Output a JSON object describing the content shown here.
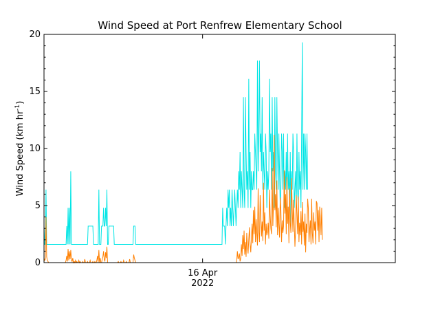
{
  "chart_data": {
    "type": "line",
    "title": "Wind Speed at Port Renfrew Elementary School",
    "ylabel_prefix": "Wind Speed (km hr",
    "ylabel_superscript": "-1",
    "ylabel_suffix": ")",
    "xlabel": "",
    "xlim": [
      "2022-04-14T08:30",
      "2022-04-18T00:00"
    ],
    "ylim": [
      0,
      20
    ],
    "grid": false,
    "legend": "none",
    "x_ticks": [
      {
        "x": "2022-04-16T00:00",
        "line1": "16 Apr",
        "line2": "2022"
      }
    ],
    "y_ticks": [
      {
        "value": 0,
        "label": "0"
      },
      {
        "value": 5,
        "label": "5"
      },
      {
        "value": 10,
        "label": "10"
      },
      {
        "value": 15,
        "label": "15"
      },
      {
        "value": 20,
        "label": "20"
      }
    ],
    "series": [
      {
        "name": "",
        "color": "#00e5e5",
        "step_minutes": 10,
        "x_start": "2022-04-14T08:30",
        "values": [
          3.2,
          1.6,
          1.6,
          6.4,
          1.6,
          1.6,
          1.6,
          1.6,
          1.6,
          1.6,
          1.6,
          1.6,
          1.6,
          1.6,
          1.6,
          1.6,
          1.6,
          1.6,
          1.6,
          1.6,
          1.6,
          1.6,
          1.6,
          1.6,
          1.6,
          1.6,
          1.6,
          1.6,
          1.6,
          1.6,
          1.6,
          1.6,
          1.6,
          1.6,
          3.2,
          1.6,
          4.8,
          1.6,
          4.8,
          1.6,
          8.0,
          1.6,
          1.6,
          1.6,
          1.6,
          1.6,
          1.6,
          1.6,
          1.6,
          1.6,
          1.6,
          1.6,
          1.6,
          1.6,
          1.6,
          1.6,
          1.6,
          1.6,
          1.6,
          1.6,
          1.6,
          1.6,
          1.6,
          1.6,
          1.6,
          1.6,
          3.2,
          3.2,
          3.2,
          3.2,
          3.2,
          3.2,
          3.2,
          3.2,
          1.6,
          1.6,
          1.6,
          1.6,
          1.6,
          1.6,
          1.6,
          1.6,
          6.4,
          1.6,
          1.6,
          1.6,
          3.2,
          3.2,
          3.2,
          4.8,
          3.2,
          3.2,
          4.8,
          3.2,
          6.4,
          1.6,
          1.6,
          3.2,
          3.2,
          3.2,
          3.2,
          3.2,
          3.2,
          3.2,
          3.2,
          1.6,
          1.6,
          1.6,
          1.6,
          1.6,
          1.6,
          1.6,
          1.6,
          1.6,
          1.6,
          1.6,
          1.6,
          1.6,
          1.6,
          1.6,
          1.6,
          1.6,
          1.6,
          1.6,
          1.6,
          1.6,
          1.6,
          1.6,
          1.6,
          1.6,
          1.6,
          1.6,
          1.6,
          1.6,
          3.2,
          3.2,
          3.2,
          1.6,
          1.6,
          1.6,
          1.6,
          1.6,
          1.6,
          1.6,
          1.6,
          1.6,
          1.6,
          1.6,
          1.6,
          1.6,
          1.6,
          1.6,
          1.6,
          1.6,
          1.6,
          1.6,
          1.6,
          1.6,
          1.6,
          1.6,
          1.6,
          1.6,
          1.6,
          1.6,
          1.6,
          1.6,
          1.6,
          1.6,
          1.6,
          1.6,
          1.6,
          1.6,
          1.6,
          1.6,
          1.6,
          1.6,
          1.6,
          1.6,
          1.6,
          1.6,
          1.6,
          1.6,
          1.6,
          1.6,
          1.6,
          1.6,
          1.6,
          1.6,
          1.6,
          1.6,
          1.6,
          1.6,
          1.6,
          1.6,
          1.6,
          1.6,
          1.6,
          1.6,
          1.6,
          1.6,
          1.6,
          1.6,
          1.6,
          1.6,
          1.6,
          1.6,
          1.6,
          1.6,
          1.6,
          1.6,
          1.6,
          1.6,
          1.6,
          1.6,
          1.6,
          1.6,
          1.6,
          1.6,
          1.6,
          1.6,
          1.6,
          1.6,
          1.6,
          1.6,
          1.6,
          1.6,
          1.6,
          1.6,
          1.6,
          1.6,
          1.6,
          1.6,
          1.6,
          1.6,
          1.6,
          1.6,
          1.6,
          1.6,
          1.6,
          1.6,
          1.6,
          1.6,
          1.6,
          1.6,
          1.6,
          1.6,
          1.6,
          1.6,
          1.6,
          1.6,
          1.6,
          1.6,
          1.6,
          1.6,
          1.6,
          1.6,
          1.6,
          1.6,
          1.6,
          1.6,
          1.6,
          1.6,
          1.6,
          1.6,
          1.6,
          1.6,
          1.6,
          4.8,
          3.2,
          3.2,
          3.2,
          1.6,
          3.2,
          4.8,
          3.2,
          6.4,
          4.8,
          6.4,
          3.2,
          4.8,
          3.2,
          6.4,
          4.8,
          3.2,
          4.8,
          6.4,
          4.8,
          3.2,
          4.8,
          6.4,
          4.8,
          8.0,
          6.4,
          9.7,
          4.8,
          8.0,
          6.4,
          4.8,
          14.5,
          6.4,
          4.8,
          14.5,
          9.7,
          6.4,
          8.0,
          4.8,
          16.1,
          6.4,
          9.7,
          4.8,
          8.0,
          6.4,
          6.4,
          8.0,
          6.4,
          11.3,
          9.7,
          8.0,
          6.4,
          17.7,
          8.0,
          11.3,
          17.7,
          9.7,
          11.3,
          8.0,
          14.5,
          6.4,
          9.7,
          8.0,
          6.4,
          11.3,
          9.7,
          4.8,
          8.0,
          6.4,
          8.0,
          16.1,
          9.7,
          11.3,
          6.4,
          14.5,
          8.0,
          9.7,
          4.8,
          14.5,
          8.0,
          6.4,
          14.5,
          9.7,
          6.4,
          11.3,
          8.0,
          4.8,
          6.4,
          11.3,
          9.7,
          6.4,
          11.3,
          4.8,
          8.0,
          6.4,
          9.7,
          4.8,
          11.3,
          6.4,
          8.0,
          4.8,
          9.7,
          3.2,
          8.0,
          6.4,
          11.3,
          9.7,
          4.8,
          6.4,
          8.0,
          4.8,
          11.3,
          6.4,
          4.8,
          9.7,
          6.4,
          8.0,
          4.8,
          11.3,
          19.3,
          6.4,
          11.3,
          6.4,
          11.3,
          9.7,
          6.4,
          11.3,
          6.4
        ]
      },
      {
        "name": "",
        "color": "#ff7f00",
        "step_minutes": 10,
        "x_start": "2022-04-14T08:30",
        "values": [
          0.4,
          0.2,
          0.3,
          4.0,
          0.5,
          0.2,
          0.1,
          0.0,
          0.0,
          0.0,
          0.0,
          0.0,
          0.0,
          0.0,
          0.0,
          0.0,
          0.0,
          0.0,
          0.0,
          0.0,
          0.0,
          0.0,
          0.0,
          0.0,
          0.0,
          0.0,
          0.0,
          0.0,
          0.0,
          0.0,
          0.0,
          0.0,
          0.0,
          0.2,
          0.6,
          0.1,
          1.2,
          0.2,
          1.0,
          0.3,
          1.1,
          0.2,
          0.1,
          0.4,
          0.0,
          0.1,
          0.0,
          0.2,
          0.0,
          0.1,
          0.0,
          0.0,
          0.2,
          0.0,
          0.1,
          0.0,
          0.0,
          0.0,
          0.1,
          0.0,
          0.0,
          0.3,
          0.0,
          0.0,
          0.0,
          0.1,
          0.0,
          0.0,
          0.0,
          0.2,
          0.0,
          0.0,
          0.0,
          0.1,
          0.0,
          0.0,
          0.1,
          0.0,
          0.0,
          0.2,
          0.6,
          0.0,
          1.1,
          0.0,
          0.4,
          0.0,
          0.0,
          0.3,
          0.5,
          1.0,
          0.3,
          0.1,
          0.9,
          0.4,
          1.4,
          0.0,
          0.0,
          0.0,
          0.0,
          0.0,
          0.0,
          0.0,
          0.0,
          0.0,
          0.0,
          0.0,
          0.0,
          0.0,
          0.0,
          0.0,
          0.0,
          0.1,
          0.0,
          0.0,
          0.0,
          0.1,
          0.0,
          0.0,
          0.0,
          0.2,
          0.0,
          0.0,
          0.0,
          0.1,
          0.0,
          0.0,
          0.0,
          0.0,
          0.3,
          0.0,
          0.0,
          0.0,
          0.0,
          0.0,
          0.7,
          0.4,
          0.2,
          0.0,
          0.0,
          0.0,
          0.0,
          0.0,
          0.0,
          0.0,
          0.0,
          0.0,
          0.0,
          0.0,
          0.0,
          0.0,
          0.0,
          0.0,
          0.0,
          0.0,
          0.0,
          0.0,
          0.0,
          0.0,
          0.0,
          0.0,
          0.0,
          0.0,
          0.0,
          0.0,
          0.0,
          0.0,
          0.0,
          0.0,
          0.0,
          0.0,
          0.0,
          0.0,
          0.0,
          0.0,
          0.0,
          0.0,
          0.0,
          0.0,
          0.0,
          0.0,
          0.0,
          0.0,
          0.0,
          0.0,
          0.0,
          0.0,
          0.0,
          0.0,
          0.0,
          0.0,
          0.0,
          0.0,
          0.0,
          0.0,
          0.0,
          0.0,
          0.0,
          0.0,
          0.0,
          0.0,
          0.0,
          0.0,
          0.0,
          0.0,
          0.0,
          0.0,
          0.0,
          0.0,
          0.0,
          0.0,
          0.0,
          0.0,
          0.0,
          0.0,
          0.0,
          0.0,
          0.0,
          0.0,
          0.0,
          0.0,
          0.0,
          0.0,
          0.0,
          0.0,
          0.0,
          0.0,
          0.0,
          0.0,
          0.0,
          0.0,
          0.0,
          0.0,
          0.0,
          0.0,
          0.0,
          0.0,
          0.0,
          0.0,
          0.0,
          0.0,
          0.0,
          0.0,
          0.0,
          0.0,
          0.0,
          0.0,
          0.0,
          0.0,
          0.0,
          0.0,
          0.0,
          0.0,
          0.0,
          0.0,
          0.0,
          0.0,
          0.0,
          0.0,
          0.0,
          0.0,
          0.0,
          0.0,
          0.0,
          0.0,
          0.0,
          0.0,
          0.0,
          0.0,
          0.0,
          0.0,
          0.0,
          0.0,
          0.0,
          0.0,
          0.0,
          0.0,
          0.0,
          0.0,
          0.0,
          0.0,
          0.0,
          0.0,
          0.0,
          0.0,
          0.0,
          0.0,
          0.0,
          0.0,
          0.2,
          1.0,
          0.3,
          0.5,
          0.8,
          0.1,
          0.4,
          1.6,
          0.6,
          2.4,
          1.2,
          2.8,
          0.7,
          1.8,
          0.5,
          2.6,
          1.4,
          0.8,
          2.0,
          3.1,
          1.6,
          0.9,
          2.2,
          3.4,
          1.7,
          4.6,
          2.5,
          4.9,
          1.8,
          3.8,
          2.6,
          1.5,
          6.5,
          2.7,
          1.8,
          5.9,
          4.1,
          2.3,
          3.6,
          1.9,
          7.0,
          2.8,
          4.4,
          1.6,
          3.4,
          2.4,
          2.7,
          3.5,
          2.1,
          6.4,
          4.2,
          3.0,
          2.5,
          8.3,
          3.2,
          5.3,
          11.2,
          4.6,
          6.0,
          3.1,
          7.2,
          2.4,
          4.8,
          3.3,
          2.2,
          5.7,
          4.6,
          1.8,
          3.7,
          2.6,
          3.2,
          8.1,
          4.3,
          6.0,
          2.5,
          7.5,
          3.4,
          4.9,
          1.7,
          6.5,
          3.5,
          2.6,
          7.4,
          4.6,
          2.7,
          5.5,
          3.3,
          1.4,
          2.9,
          5.9,
          4.2,
          2.5,
          5.8,
          1.8,
          3.5,
          2.4,
          4.5,
          1.6,
          5.3,
          2.7,
          3.6,
          1.5,
          4.3,
          0.9,
          3.4,
          2.6,
          5.6,
          4.8,
          1.8,
          2.9,
          3.7,
          1.6,
          5.6,
          2.6,
          1.7,
          4.4,
          2.8,
          3.6,
          1.6,
          5.4,
          5.2,
          2.8,
          4.6,
          1.8,
          4.9,
          3.8,
          2.4,
          4.8,
          2.0
        ]
      }
    ]
  }
}
